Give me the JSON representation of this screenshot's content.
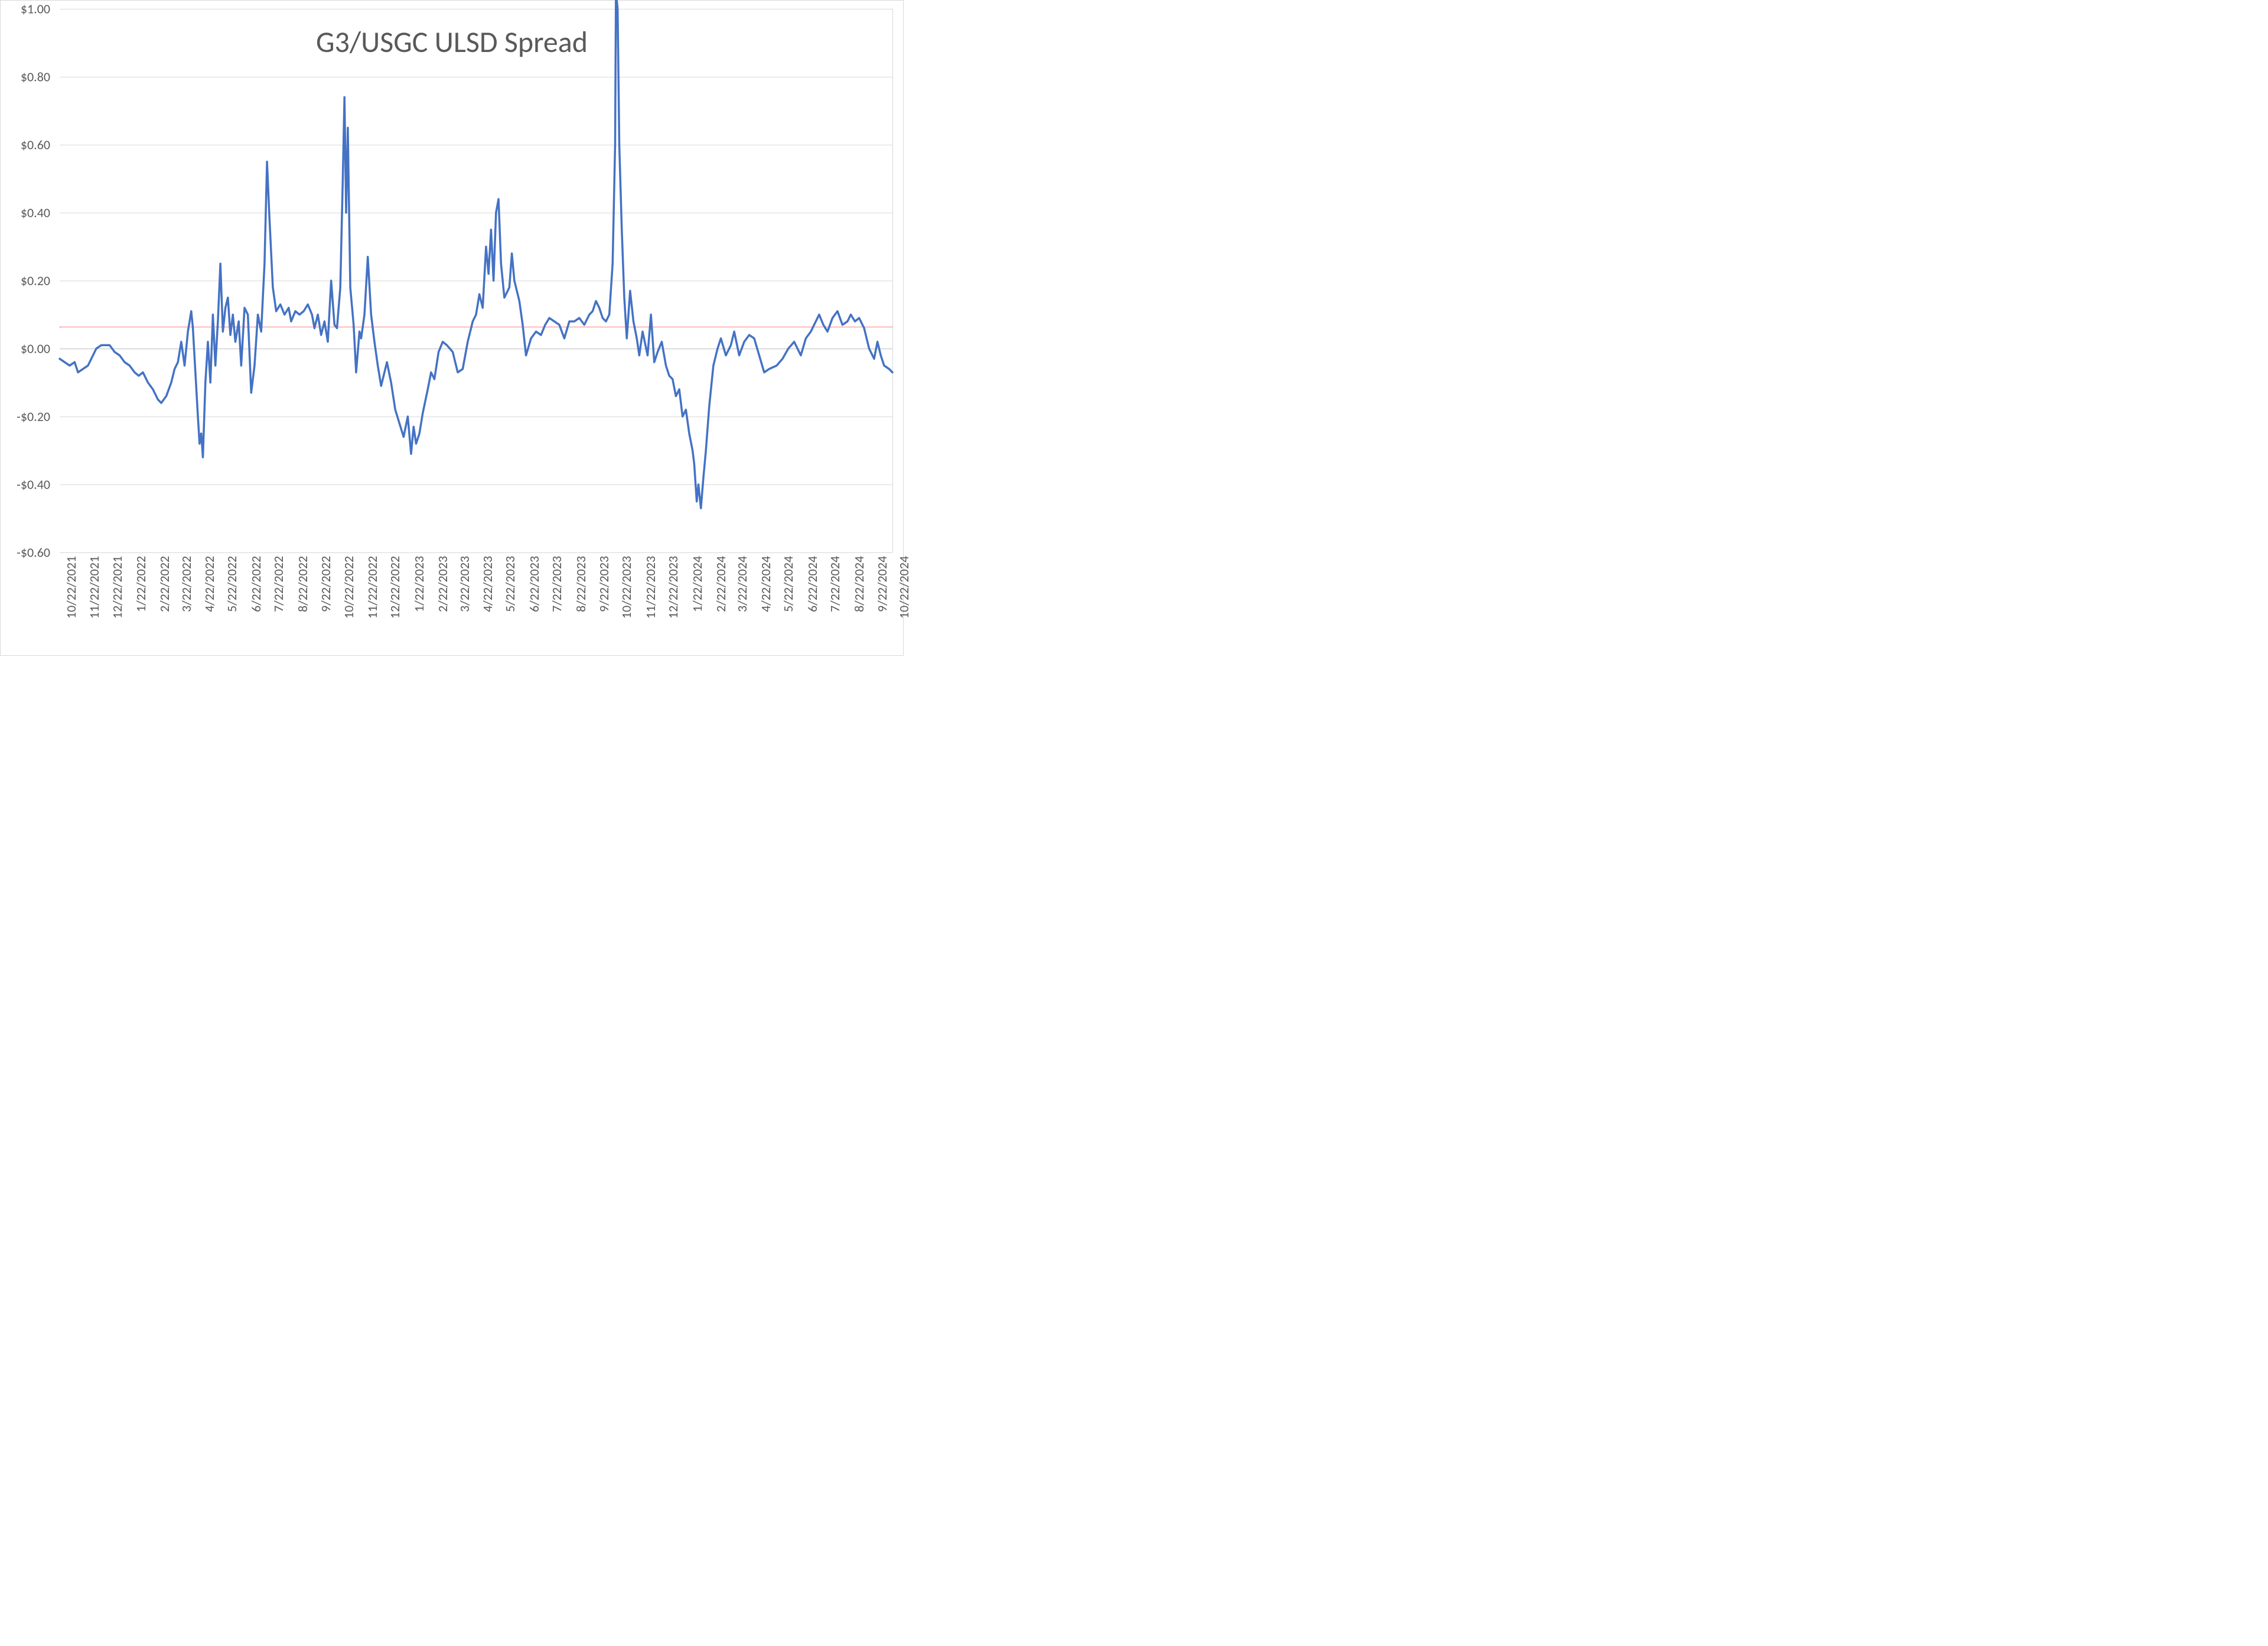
{
  "chart": {
    "type": "line",
    "title": "G3/USGC ULSD Spread",
    "title_fontsize": 50,
    "title_color": "#595959",
    "background_color": "#ffffff",
    "border_color": "#d9d9d9",
    "grid_color": "#d9d9d9",
    "axis_font_color": "#595959",
    "axis_fontsize": 22,
    "line_color": "#4472c4",
    "line_width": 3.5,
    "reference_line_value": 0.065,
    "reference_line_color": "#ff0000",
    "reference_line_style": "dotted",
    "ylim": [
      -0.6,
      1.0
    ],
    "ytick_step": 0.2,
    "y_tick_labels": [
      "$1.00",
      "$0.80",
      "$0.60",
      "$0.40",
      "$0.20",
      "$0.00",
      "-$0.20",
      "-$0.40",
      "-$0.60"
    ],
    "y_tick_values": [
      1.0,
      0.8,
      0.6,
      0.4,
      0.2,
      0.0,
      -0.2,
      -0.4,
      -0.6
    ],
    "x_tick_labels": [
      "10/22/2021",
      "11/22/2021",
      "12/22/2021",
      "1/22/2022",
      "2/22/2022",
      "3/22/2022",
      "4/22/2022",
      "5/22/2022",
      "6/22/2022",
      "7/22/2022",
      "8/22/2022",
      "9/22/2022",
      "10/22/2022",
      "11/22/2022",
      "12/22/2022",
      "1/22/2023",
      "2/22/2023",
      "3/22/2023",
      "4/22/2023",
      "5/22/2023",
      "6/22/2023",
      "7/22/2023",
      "8/22/2023",
      "9/22/2023",
      "10/22/2023",
      "11/22/2023",
      "12/22/2023",
      "1/22/2024",
      "2/22/2024",
      "3/22/2024",
      "4/22/2024",
      "5/22/2024",
      "6/22/2024",
      "7/22/2024",
      "8/22/2024",
      "9/22/2024",
      "10/22/2024"
    ],
    "x_tick_positions": [
      0.0,
      0.028,
      0.055,
      0.084,
      0.112,
      0.138,
      0.166,
      0.193,
      0.222,
      0.249,
      0.278,
      0.306,
      0.333,
      0.362,
      0.389,
      0.418,
      0.446,
      0.472,
      0.5,
      0.527,
      0.556,
      0.583,
      0.612,
      0.64,
      0.667,
      0.696,
      0.723,
      0.752,
      0.78,
      0.806,
      0.834,
      0.861,
      0.89,
      0.917,
      0.946,
      0.974,
      1.0
    ],
    "series": {
      "name": "G3/USGC ULSD Spread",
      "points": [
        [
          0.0,
          -0.03
        ],
        [
          0.006,
          -0.04
        ],
        [
          0.012,
          -0.05
        ],
        [
          0.018,
          -0.04
        ],
        [
          0.022,
          -0.07
        ],
        [
          0.028,
          -0.06
        ],
        [
          0.034,
          -0.05
        ],
        [
          0.038,
          -0.03
        ],
        [
          0.044,
          0.0
        ],
        [
          0.05,
          0.01
        ],
        [
          0.055,
          0.01
        ],
        [
          0.06,
          0.01
        ],
        [
          0.066,
          -0.01
        ],
        [
          0.072,
          -0.02
        ],
        [
          0.078,
          -0.04
        ],
        [
          0.084,
          -0.05
        ],
        [
          0.09,
          -0.07
        ],
        [
          0.095,
          -0.08
        ],
        [
          0.1,
          -0.07
        ],
        [
          0.106,
          -0.1
        ],
        [
          0.112,
          -0.12
        ],
        [
          0.118,
          -0.15
        ],
        [
          0.122,
          -0.16
        ],
        [
          0.128,
          -0.14
        ],
        [
          0.134,
          -0.1
        ],
        [
          0.138,
          -0.06
        ],
        [
          0.142,
          -0.04
        ],
        [
          0.146,
          0.02
        ],
        [
          0.15,
          -0.05
        ],
        [
          0.154,
          0.05
        ],
        [
          0.158,
          0.11
        ],
        [
          0.16,
          0.06
        ],
        [
          0.163,
          -0.07
        ],
        [
          0.166,
          -0.2
        ],
        [
          0.168,
          -0.28
        ],
        [
          0.17,
          -0.25
        ],
        [
          0.172,
          -0.32
        ],
        [
          0.175,
          -0.1
        ],
        [
          0.178,
          0.02
        ],
        [
          0.181,
          -0.1
        ],
        [
          0.184,
          0.1
        ],
        [
          0.187,
          -0.05
        ],
        [
          0.19,
          0.08
        ],
        [
          0.193,
          0.25
        ],
        [
          0.196,
          0.05
        ],
        [
          0.199,
          0.12
        ],
        [
          0.202,
          0.15
        ],
        [
          0.205,
          0.04
        ],
        [
          0.208,
          0.1
        ],
        [
          0.211,
          0.02
        ],
        [
          0.215,
          0.08
        ],
        [
          0.218,
          -0.05
        ],
        [
          0.222,
          0.12
        ],
        [
          0.226,
          0.1
        ],
        [
          0.23,
          -0.13
        ],
        [
          0.234,
          -0.05
        ],
        [
          0.238,
          0.1
        ],
        [
          0.242,
          0.05
        ],
        [
          0.246,
          0.25
        ],
        [
          0.249,
          0.55
        ],
        [
          0.252,
          0.38
        ],
        [
          0.256,
          0.18
        ],
        [
          0.26,
          0.11
        ],
        [
          0.265,
          0.13
        ],
        [
          0.27,
          0.1
        ],
        [
          0.275,
          0.12
        ],
        [
          0.278,
          0.08
        ],
        [
          0.283,
          0.11
        ],
        [
          0.288,
          0.1
        ],
        [
          0.293,
          0.11
        ],
        [
          0.298,
          0.13
        ],
        [
          0.303,
          0.1
        ],
        [
          0.306,
          0.06
        ],
        [
          0.31,
          0.1
        ],
        [
          0.314,
          0.04
        ],
        [
          0.318,
          0.08
        ],
        [
          0.322,
          0.02
        ],
        [
          0.326,
          0.2
        ],
        [
          0.33,
          0.07
        ],
        [
          0.333,
          0.06
        ],
        [
          0.337,
          0.18
        ],
        [
          0.34,
          0.5
        ],
        [
          0.342,
          0.74
        ],
        [
          0.344,
          0.4
        ],
        [
          0.346,
          0.65
        ],
        [
          0.349,
          0.18
        ],
        [
          0.353,
          0.07
        ],
        [
          0.356,
          -0.07
        ],
        [
          0.36,
          0.05
        ],
        [
          0.362,
          0.03
        ],
        [
          0.366,
          0.1
        ],
        [
          0.37,
          0.27
        ],
        [
          0.374,
          0.1
        ],
        [
          0.378,
          0.02
        ],
        [
          0.382,
          -0.05
        ],
        [
          0.386,
          -0.11
        ],
        [
          0.389,
          -0.08
        ],
        [
          0.393,
          -0.04
        ],
        [
          0.398,
          -0.1
        ],
        [
          0.403,
          -0.18
        ],
        [
          0.408,
          -0.22
        ],
        [
          0.413,
          -0.26
        ],
        [
          0.418,
          -0.2
        ],
        [
          0.422,
          -0.31
        ],
        [
          0.425,
          -0.23
        ],
        [
          0.428,
          -0.28
        ],
        [
          0.432,
          -0.25
        ],
        [
          0.436,
          -0.19
        ],
        [
          0.442,
          -0.12
        ],
        [
          0.446,
          -0.07
        ],
        [
          0.45,
          -0.09
        ],
        [
          0.455,
          -0.01
        ],
        [
          0.46,
          0.02
        ],
        [
          0.465,
          0.01
        ],
        [
          0.472,
          -0.01
        ],
        [
          0.478,
          -0.07
        ],
        [
          0.484,
          -0.06
        ],
        [
          0.49,
          0.02
        ],
        [
          0.496,
          0.08
        ],
        [
          0.5,
          0.1
        ],
        [
          0.504,
          0.16
        ],
        [
          0.508,
          0.12
        ],
        [
          0.512,
          0.3
        ],
        [
          0.515,
          0.22
        ],
        [
          0.518,
          0.35
        ],
        [
          0.521,
          0.2
        ],
        [
          0.524,
          0.4
        ],
        [
          0.527,
          0.44
        ],
        [
          0.53,
          0.25
        ],
        [
          0.534,
          0.15
        ],
        [
          0.54,
          0.18
        ],
        [
          0.543,
          0.28
        ],
        [
          0.546,
          0.2
        ],
        [
          0.552,
          0.14
        ],
        [
          0.556,
          0.07
        ],
        [
          0.56,
          -0.02
        ],
        [
          0.566,
          0.03
        ],
        [
          0.572,
          0.05
        ],
        [
          0.578,
          0.04
        ],
        [
          0.583,
          0.07
        ],
        [
          0.588,
          0.09
        ],
        [
          0.594,
          0.08
        ],
        [
          0.6,
          0.07
        ],
        [
          0.606,
          0.03
        ],
        [
          0.612,
          0.08
        ],
        [
          0.618,
          0.08
        ],
        [
          0.624,
          0.09
        ],
        [
          0.63,
          0.07
        ],
        [
          0.636,
          0.1
        ],
        [
          0.64,
          0.11
        ],
        [
          0.644,
          0.14
        ],
        [
          0.648,
          0.12
        ],
        [
          0.652,
          0.09
        ],
        [
          0.656,
          0.08
        ],
        [
          0.66,
          0.1
        ],
        [
          0.664,
          0.25
        ],
        [
          0.667,
          0.6
        ],
        [
          0.668,
          1.05
        ],
        [
          0.67,
          1.0
        ],
        [
          0.672,
          0.6
        ],
        [
          0.675,
          0.35
        ],
        [
          0.678,
          0.15
        ],
        [
          0.681,
          0.03
        ],
        [
          0.685,
          0.17
        ],
        [
          0.689,
          0.08
        ],
        [
          0.693,
          0.03
        ],
        [
          0.696,
          -0.02
        ],
        [
          0.7,
          0.05
        ],
        [
          0.706,
          -0.02
        ],
        [
          0.71,
          0.1
        ],
        [
          0.714,
          -0.04
        ],
        [
          0.718,
          -0.01
        ],
        [
          0.723,
          0.02
        ],
        [
          0.728,
          -0.05
        ],
        [
          0.732,
          -0.08
        ],
        [
          0.736,
          -0.09
        ],
        [
          0.74,
          -0.14
        ],
        [
          0.744,
          -0.12
        ],
        [
          0.748,
          -0.2
        ],
        [
          0.752,
          -0.18
        ],
        [
          0.756,
          -0.25
        ],
        [
          0.76,
          -0.3
        ],
        [
          0.762,
          -0.34
        ],
        [
          0.765,
          -0.45
        ],
        [
          0.767,
          -0.4
        ],
        [
          0.77,
          -0.47
        ],
        [
          0.773,
          -0.38
        ],
        [
          0.776,
          -0.3
        ],
        [
          0.78,
          -0.17
        ],
        [
          0.785,
          -0.05
        ],
        [
          0.79,
          0.0
        ],
        [
          0.794,
          0.03
        ],
        [
          0.8,
          -0.02
        ],
        [
          0.806,
          0.01
        ],
        [
          0.81,
          0.05
        ],
        [
          0.816,
          -0.02
        ],
        [
          0.822,
          0.02
        ],
        [
          0.828,
          0.04
        ],
        [
          0.834,
          0.03
        ],
        [
          0.84,
          -0.02
        ],
        [
          0.846,
          -0.07
        ],
        [
          0.852,
          -0.06
        ],
        [
          0.861,
          -0.05
        ],
        [
          0.868,
          -0.03
        ],
        [
          0.875,
          0.0
        ],
        [
          0.882,
          0.02
        ],
        [
          0.89,
          -0.02
        ],
        [
          0.896,
          0.03
        ],
        [
          0.902,
          0.05
        ],
        [
          0.908,
          0.08
        ],
        [
          0.912,
          0.1
        ],
        [
          0.917,
          0.07
        ],
        [
          0.922,
          0.05
        ],
        [
          0.928,
          0.09
        ],
        [
          0.934,
          0.11
        ],
        [
          0.94,
          0.07
        ],
        [
          0.946,
          0.08
        ],
        [
          0.95,
          0.1
        ],
        [
          0.955,
          0.08
        ],
        [
          0.96,
          0.09
        ],
        [
          0.966,
          0.06
        ],
        [
          0.972,
          0.0
        ],
        [
          0.978,
          -0.03
        ],
        [
          0.982,
          0.02
        ],
        [
          0.986,
          -0.02
        ],
        [
          0.99,
          -0.05
        ],
        [
          0.996,
          -0.06
        ],
        [
          1.0,
          -0.07
        ]
      ]
    }
  }
}
